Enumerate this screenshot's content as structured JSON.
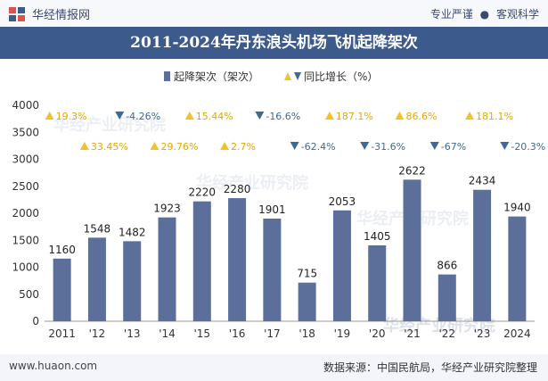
{
  "header": {
    "brand": "华经情报网",
    "slogan_left": "专业严谨",
    "slogan_dot": "●",
    "slogan_right": "客观科学"
  },
  "footer": {
    "url": "www.huaon.com",
    "source": "数据来源：中国民航局，华经产业研究院整理"
  },
  "watermark": "华经产业研究院",
  "colors": {
    "bar": "#5b6f9a",
    "up": "#f2c12e",
    "down": "#3f6a93",
    "title_bg": "#3d5a8c"
  },
  "chart_data": {
    "type": "bar",
    "title": "2011-2024年丹东浪头机场飞机起降架次",
    "categories": [
      "2011",
      "'12",
      "'13",
      "'14",
      "'15",
      "'16",
      "'17",
      "'18",
      "'19",
      "'20",
      "'21",
      "'22",
      "'23",
      "2024"
    ],
    "series": [
      {
        "name": "起降架次（架次）",
        "values": [
          1160,
          1548,
          1482,
          1923,
          2220,
          2280,
          1901,
          715,
          2053,
          1405,
          2622,
          866,
          2434,
          1940
        ]
      },
      {
        "name": "同比增长（%）",
        "values": [
          19.3,
          33.45,
          -4.26,
          29.76,
          15.44,
          2.7,
          -16.6,
          -62.4,
          187.1,
          -31.6,
          86.6,
          -67,
          181.1,
          -20.3
        ]
      }
    ],
    "growth_labels": [
      "19.3%",
      "33.45%",
      "-4.26%",
      "29.76%",
      "15.44%",
      "2.7%",
      "-16.6%",
      "-62.4%",
      "187.1%",
      "-31.6%",
      "86.6%",
      "-67%",
      "181.1%",
      "-20.3%"
    ],
    "yticks": [
      0,
      500,
      1000,
      1500,
      2000,
      2500,
      3000,
      3500,
      4000
    ],
    "ylim": [
      0,
      4000
    ],
    "legend_position": "top-right",
    "grid": false
  }
}
